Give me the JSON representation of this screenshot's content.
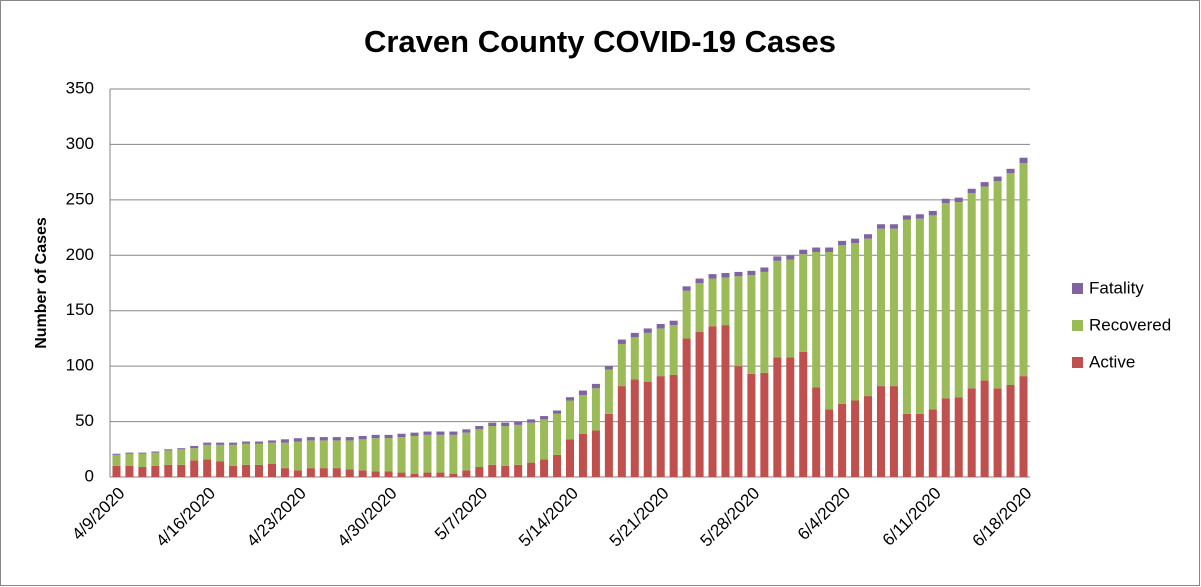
{
  "chart_data": {
    "type": "stacked_bar",
    "title": "Craven County COVID-19 Cases",
    "y_label": "Number of Cases",
    "categories": [
      "4/9/2020",
      null,
      null,
      null,
      null,
      null,
      null,
      "4/16/2020",
      null,
      null,
      null,
      null,
      null,
      null,
      "4/23/2020",
      null,
      null,
      null,
      null,
      null,
      null,
      "4/30/2020",
      null,
      null,
      null,
      null,
      null,
      null,
      "5/7/2020",
      null,
      null,
      null,
      null,
      null,
      null,
      "5/14/2020",
      null,
      null,
      null,
      null,
      null,
      null,
      "5/21/2020",
      null,
      null,
      null,
      null,
      null,
      null,
      "5/28/2020",
      null,
      null,
      null,
      null,
      null,
      null,
      "6/4/2020",
      null,
      null,
      null,
      null,
      null,
      null,
      "6/11/2020",
      null,
      null,
      null,
      null,
      null,
      null,
      "6/18/2020"
    ],
    "series": [
      {
        "name": "Active",
        "color": "#c0504d",
        "values": [
          10,
          10,
          9,
          10,
          11,
          11,
          15,
          16,
          14,
          10,
          11,
          11,
          12,
          8,
          6,
          8,
          8,
          8,
          7,
          6,
          5,
          5,
          4,
          3,
          4,
          4,
          3,
          6,
          9,
          11,
          10,
          11,
          13,
          16,
          20,
          34,
          39,
          42,
          57,
          82,
          88,
          86,
          91,
          92,
          125,
          131,
          136,
          137,
          100,
          93,
          94,
          108,
          108,
          113,
          81,
          61,
          66,
          69,
          73,
          82,
          82,
          57,
          57,
          61,
          71,
          72,
          80,
          87,
          80,
          83,
          91
        ]
      },
      {
        "name": "Recovered",
        "color": "#9bbb59",
        "values": [
          10,
          11,
          12,
          12,
          13,
          14,
          11,
          13,
          15,
          19,
          19,
          19,
          19,
          23,
          26,
          25,
          25,
          25,
          26,
          28,
          30,
          30,
          32,
          34,
          34,
          34,
          35,
          34,
          34,
          35,
          36,
          36,
          36,
          36,
          37,
          35,
          35,
          38,
          40,
          38,
          38,
          44,
          43,
          45,
          43,
          44,
          43,
          43,
          81,
          89,
          91,
          87,
          88,
          88,
          122,
          142,
          143,
          142,
          142,
          142,
          142,
          175,
          176,
          175,
          176,
          176,
          176,
          175,
          187,
          191,
          192
        ]
      },
      {
        "name": "Fatality",
        "color": "#8064a2",
        "values": [
          1,
          1,
          1,
          1,
          1,
          1,
          2,
          2,
          2,
          2,
          2,
          2,
          2,
          3,
          3,
          3,
          3,
          3,
          3,
          3,
          3,
          3,
          3,
          3,
          3,
          3,
          3,
          3,
          3,
          3,
          3,
          3,
          3,
          3,
          3,
          3,
          4,
          4,
          3,
          4,
          4,
          4,
          4,
          4,
          4,
          4,
          4,
          4,
          4,
          4,
          4,
          4,
          4,
          4,
          4,
          4,
          4,
          4,
          4,
          4,
          4,
          4,
          4,
          4,
          4,
          4,
          4,
          4,
          4,
          4,
          5
        ]
      }
    ],
    "ylim": [
      0,
      350
    ],
    "yticks": [
      0,
      50,
      100,
      150,
      200,
      250,
      300,
      350
    ],
    "grid": true,
    "legend": "right"
  }
}
